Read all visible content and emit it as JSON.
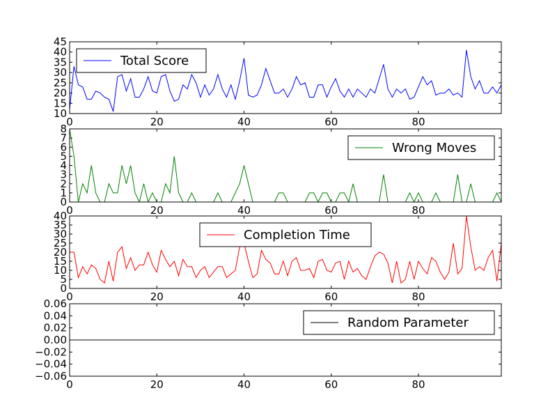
{
  "chart_data": [
    {
      "type": "line",
      "x": [
        0,
        1,
        2,
        3,
        4,
        5,
        6,
        7,
        8,
        9,
        10,
        11,
        12,
        13,
        14,
        15,
        16,
        17,
        18,
        19,
        20,
        21,
        22,
        23,
        24,
        25,
        26,
        27,
        28,
        29,
        30,
        31,
        32,
        33,
        34,
        35,
        36,
        37,
        38,
        39,
        40,
        41,
        42,
        43,
        44,
        45,
        46,
        47,
        48,
        49,
        50,
        51,
        52,
        53,
        54,
        55,
        56,
        57,
        58,
        59,
        60,
        61,
        62,
        63,
        64,
        65,
        66,
        67,
        68,
        69,
        70,
        71,
        72,
        73,
        74,
        75,
        76,
        77,
        78,
        79,
        80,
        81,
        82,
        83,
        84,
        85,
        86,
        87,
        88,
        89,
        90,
        91,
        92,
        93,
        94,
        95,
        96,
        97,
        98,
        99
      ],
      "series": [
        {
          "name": "Total Score",
          "color": "#0000ff",
          "values": [
            12,
            33,
            24,
            23,
            17,
            17,
            21,
            20,
            18,
            17,
            11,
            28,
            29,
            21,
            27,
            18,
            18,
            22,
            28,
            21,
            20,
            28,
            29,
            21,
            16,
            17,
            24,
            22,
            29,
            25,
            18,
            24,
            19,
            22,
            29,
            22,
            18,
            24,
            17,
            26,
            37,
            19,
            18,
            19,
            24,
            32,
            26,
            20,
            20,
            22,
            18,
            22,
            28,
            24,
            25,
            18,
            18,
            24,
            24,
            18,
            23,
            27,
            21,
            18,
            22,
            18,
            22,
            20,
            18,
            22,
            20,
            27,
            34,
            22,
            18,
            22,
            20,
            22,
            17,
            18,
            23,
            28,
            24,
            26,
            19,
            20,
            20,
            22,
            19,
            20,
            18,
            41,
            28,
            22,
            26,
            20,
            20,
            23,
            20,
            24
          ]
        }
      ],
      "ylim": [
        10,
        45
      ],
      "xlim": [
        0,
        99
      ],
      "yticks": [
        10,
        15,
        20,
        25,
        30,
        35,
        40,
        45
      ],
      "xticks": [
        0,
        20,
        40,
        60,
        80
      ],
      "legend": "top-left"
    },
    {
      "type": "line",
      "x": [
        0,
        1,
        2,
        3,
        4,
        5,
        6,
        7,
        8,
        9,
        10,
        11,
        12,
        13,
        14,
        15,
        16,
        17,
        18,
        19,
        20,
        21,
        22,
        23,
        24,
        25,
        26,
        27,
        28,
        29,
        30,
        31,
        32,
        33,
        34,
        35,
        36,
        37,
        38,
        39,
        40,
        41,
        42,
        43,
        44,
        45,
        46,
        47,
        48,
        49,
        50,
        51,
        52,
        53,
        54,
        55,
        56,
        57,
        58,
        59,
        60,
        61,
        62,
        63,
        64,
        65,
        66,
        67,
        68,
        69,
        70,
        71,
        72,
        73,
        74,
        75,
        76,
        77,
        78,
        79,
        80,
        81,
        82,
        83,
        84,
        85,
        86,
        87,
        88,
        89,
        90,
        91,
        92,
        93,
        94,
        95,
        96,
        97,
        98,
        99
      ],
      "series": [
        {
          "name": "Wrong Moves",
          "color": "#008000",
          "values": [
            8,
            5,
            0,
            2,
            1,
            4,
            1,
            0,
            0,
            2,
            1,
            1,
            4,
            2,
            4,
            1,
            0,
            2,
            0,
            1,
            0,
            0,
            2,
            1,
            5,
            1,
            0,
            0,
            1,
            0,
            0,
            0,
            0,
            0,
            1,
            0,
            0,
            0,
            1,
            2,
            4,
            2,
            0,
            0,
            0,
            0,
            0,
            0,
            1,
            1,
            0,
            0,
            0,
            0,
            0,
            1,
            1,
            0,
            1,
            1,
            0,
            0,
            1,
            1,
            0,
            2,
            0,
            0,
            0,
            0,
            0,
            0,
            3,
            0,
            0,
            0,
            0,
            0,
            1,
            0,
            1,
            0,
            0,
            0,
            1,
            0,
            0,
            0,
            0,
            3,
            0,
            0,
            2,
            0,
            0,
            0,
            0,
            0,
            1,
            0
          ]
        }
      ],
      "ylim": [
        0,
        8
      ],
      "xlim": [
        0,
        99
      ],
      "yticks": [
        0,
        1,
        2,
        3,
        4,
        5,
        6,
        7,
        8
      ],
      "xticks": [
        0,
        20,
        40,
        60,
        80
      ],
      "legend": "top-right"
    },
    {
      "type": "line",
      "x": [
        0,
        1,
        2,
        3,
        4,
        5,
        6,
        7,
        8,
        9,
        10,
        11,
        12,
        13,
        14,
        15,
        16,
        17,
        18,
        19,
        20,
        21,
        22,
        23,
        24,
        25,
        26,
        27,
        28,
        29,
        30,
        31,
        32,
        33,
        34,
        35,
        36,
        37,
        38,
        39,
        40,
        41,
        42,
        43,
        44,
        45,
        46,
        47,
        48,
        49,
        50,
        51,
        52,
        53,
        54,
        55,
        56,
        57,
        58,
        59,
        60,
        61,
        62,
        63,
        64,
        65,
        66,
        67,
        68,
        69,
        70,
        71,
        72,
        73,
        74,
        75,
        76,
        77,
        78,
        79,
        80,
        81,
        82,
        83,
        84,
        85,
        86,
        87,
        88,
        89,
        90,
        91,
        92,
        93,
        94,
        95,
        96,
        97,
        98,
        99
      ],
      "series": [
        {
          "name": "Completion Time",
          "color": "#ff0000",
          "values": [
            20,
            20,
            6,
            12,
            8,
            13,
            11,
            5,
            3,
            15,
            4,
            20,
            23,
            11,
            17,
            10,
            13,
            13,
            20,
            13,
            9,
            21,
            16,
            12,
            15,
            7,
            16,
            12,
            12,
            6,
            10,
            12,
            6,
            9,
            12,
            12,
            6,
            8,
            10,
            23,
            25,
            15,
            6,
            8,
            21,
            16,
            14,
            8,
            8,
            15,
            7,
            15,
            17,
            10,
            10,
            11,
            6,
            15,
            16,
            10,
            9,
            14,
            15,
            5,
            15,
            9,
            11,
            7,
            5,
            12,
            18,
            20,
            19,
            14,
            3,
            15,
            3,
            5,
            15,
            5,
            15,
            11,
            8,
            17,
            15,
            9,
            5,
            9,
            25,
            8,
            11,
            40,
            23,
            10,
            12,
            10,
            17,
            21,
            4,
            25
          ]
        }
      ],
      "ylim": [
        0,
        40
      ],
      "xlim": [
        0,
        99
      ],
      "yticks": [
        0,
        5,
        10,
        15,
        20,
        25,
        30,
        35,
        40
      ],
      "xticks": [
        0,
        20,
        40,
        60,
        80
      ],
      "legend": "top-center"
    },
    {
      "type": "line",
      "x": [
        0,
        1,
        2,
        3,
        4,
        5,
        6,
        7,
        8,
        9,
        10,
        11,
        12,
        13,
        14,
        15,
        16,
        17,
        18,
        19,
        20,
        21,
        22,
        23,
        24,
        25,
        26,
        27,
        28,
        29,
        30,
        31,
        32,
        33,
        34,
        35,
        36,
        37,
        38,
        39,
        40,
        41,
        42,
        43,
        44,
        45,
        46,
        47,
        48,
        49,
        50,
        51,
        52,
        53,
        54,
        55,
        56,
        57,
        58,
        59,
        60,
        61,
        62,
        63,
        64,
        65,
        66,
        67,
        68,
        69,
        70,
        71,
        72,
        73,
        74,
        75,
        76,
        77,
        78,
        79,
        80,
        81,
        82,
        83,
        84,
        85,
        86,
        87,
        88,
        89,
        90,
        91,
        92,
        93,
        94,
        95,
        96,
        97,
        98,
        99
      ],
      "series": [
        {
          "name": "Random Parameter",
          "color": "#000000",
          "values": [
            0,
            0,
            0,
            0,
            0,
            0,
            0,
            0,
            0,
            0,
            0,
            0,
            0,
            0,
            0,
            0,
            0,
            0,
            0,
            0,
            0,
            0,
            0,
            0,
            0,
            0,
            0,
            0,
            0,
            0,
            0,
            0,
            0,
            0,
            0,
            0,
            0,
            0,
            0,
            0,
            0,
            0,
            0,
            0,
            0,
            0,
            0,
            0,
            0,
            0,
            0,
            0,
            0,
            0,
            0,
            0,
            0,
            0,
            0,
            0,
            0,
            0,
            0,
            0,
            0,
            0,
            0,
            0,
            0,
            0,
            0,
            0,
            0,
            0,
            0,
            0,
            0,
            0,
            0,
            0,
            0,
            0,
            0,
            0,
            0,
            0,
            0,
            0,
            0,
            0,
            0,
            0,
            0,
            0,
            0,
            0,
            0,
            0,
            0,
            0
          ]
        }
      ],
      "ylim": [
        -0.06,
        0.06
      ],
      "xlim": [
        0,
        99
      ],
      "yticks": [
        -0.06,
        -0.04,
        -0.02,
        0.0,
        0.02,
        0.04,
        0.06
      ],
      "ytick_labels": [
        "−0.06",
        "−0.04",
        "−0.02",
        "0.00",
        "0.02",
        "0.04",
        "0.06"
      ],
      "xticks": [
        0,
        20,
        40,
        60,
        80
      ],
      "legend": "top-right"
    }
  ]
}
